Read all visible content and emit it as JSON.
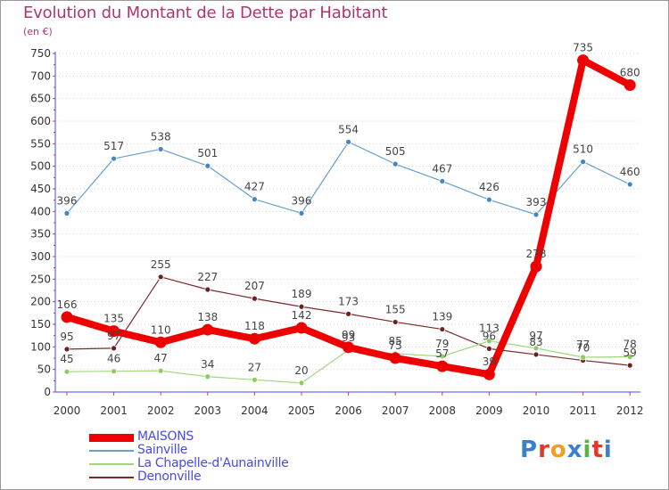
{
  "header": {
    "title": "Evolution du Montant de la Dette par Habitant",
    "subtitle": "(en €)"
  },
  "logo": {
    "text": "Proxiti"
  },
  "colors": {
    "title": "#b0356b",
    "legend_text": "#4a4ae6",
    "axis": "#4a4ae6",
    "grid": "#d0d0d0",
    "value_label": "#444444"
  },
  "chart_data": {
    "type": "line",
    "title": "Evolution du Montant de la Dette par Habitant",
    "subtitle": "(en €)",
    "xlabel": "",
    "ylabel": "",
    "ylim": [
      0,
      750
    ],
    "yticks": [
      0,
      50,
      100,
      150,
      200,
      250,
      300,
      350,
      400,
      450,
      500,
      550,
      600,
      650,
      700,
      750
    ],
    "grid": true,
    "legend_position": "bottom-left",
    "x": [
      "2000",
      "2001",
      "2002",
      "2003",
      "2004",
      "2005",
      "2006",
      "2007",
      "2008",
      "2009",
      "2010",
      "2011",
      "2012"
    ],
    "series": [
      {
        "name": "MAISONS",
        "color": "#ee0000",
        "marker": "#ee0000",
        "width": "thick",
        "values": [
          166,
          135,
          110,
          138,
          118,
          142,
          99,
          75,
          57,
          39,
          278,
          735,
          680
        ]
      },
      {
        "name": "Sainville",
        "color": "#6a9ecf",
        "marker": "#3f87c8",
        "width": "thin",
        "values": [
          396,
          517,
          538,
          501,
          427,
          396,
          554,
          505,
          467,
          426,
          393,
          510,
          460
        ]
      },
      {
        "name": "La Chapelle-d'Aunainville",
        "color": "#9fd87a",
        "marker": "#8ccc60",
        "width": "thin",
        "values": [
          45,
          46,
          47,
          34,
          27,
          20,
          93,
          85,
          79,
          113,
          97,
          77,
          78
        ]
      },
      {
        "name": "Denonville",
        "color": "#7a2a2a",
        "marker": "#6e1f1f",
        "width": "thin",
        "values": [
          95,
          97,
          255,
          227,
          207,
          189,
          173,
          155,
          139,
          96,
          83,
          70,
          59
        ]
      }
    ]
  }
}
